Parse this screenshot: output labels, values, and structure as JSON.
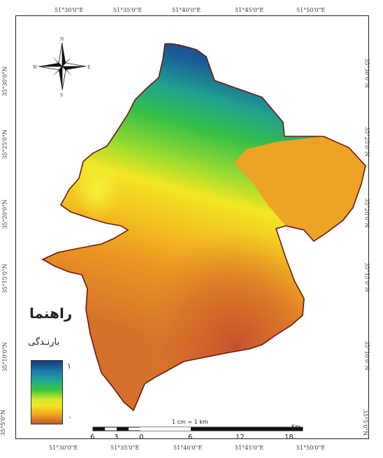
{
  "longitude_labels_top": [
    "51°30'0\"E",
    "51°35'0\"E",
    "51°40'0\"E",
    "51°45'0\"E",
    "51°50'0\"E"
  ],
  "longitude_labels_bottom": [
    "51°30'0\"E",
    "51°35'0\"E",
    "51°40'0\"E",
    "51°45'0\"E",
    "51°50'0\"E"
  ],
  "latitude_labels_left": [
    "35°30'0\"N",
    "35°25'0\"N",
    "35°20'0\"N",
    "35°15'0\"N",
    "35°10'0\"N",
    "35°5'0\"N"
  ],
  "latitude_labels_right": [
    "35°30'0\"N",
    "35°25'0\"N",
    "35°20'0\"N",
    "35°15'0\"N",
    "35°10'0\"N",
    "35°5'0\"N"
  ],
  "legend": {
    "title": "راهنما",
    "variable": "بارنـدگی",
    "high_label": "۱",
    "low_label": "۰"
  },
  "north_arrow": {
    "n": "N",
    "s": "S",
    "e": "E",
    "w": "W"
  },
  "scale_bar": {
    "ratio_text": "1 cm = 1 km",
    "unit": "Km",
    "ticks": [
      "6",
      "3",
      "0",
      "6",
      "12",
      "18"
    ]
  },
  "colors": {
    "low": "#c7562b",
    "mid_low": "#eea21f",
    "mid": "#f4e21f",
    "mid_high": "#3bc43a",
    "teal": "#21b08a",
    "high": "#163a7a",
    "boundary": "#6b1a12"
  }
}
